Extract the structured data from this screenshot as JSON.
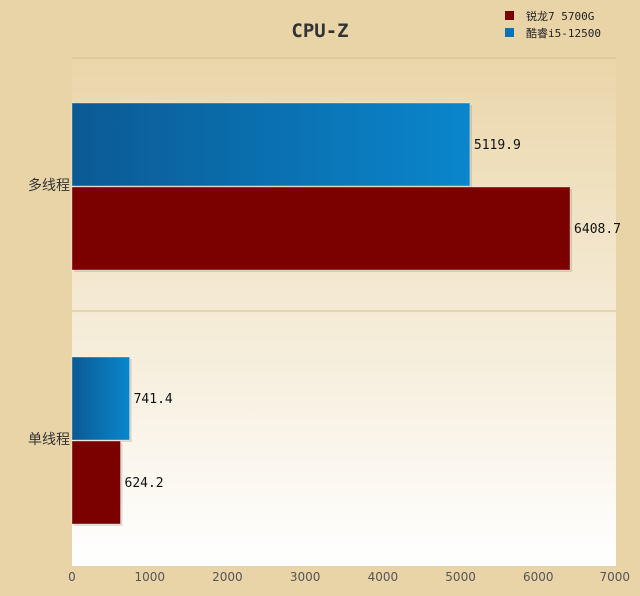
{
  "chart_data": {
    "type": "bar",
    "orientation": "horizontal",
    "title": "CPU-Z",
    "categories": [
      "多线程",
      "单线程"
    ],
    "series": [
      {
        "name": "锐龙7 5700G",
        "color": "#7b0000",
        "values": [
          6408.7,
          624.2
        ],
        "value_labels": [
          "6408.7",
          "624.2"
        ]
      },
      {
        "name": "酷睿i5-12500",
        "color": "#0a73b7",
        "values": [
          5119.9,
          741.4
        ],
        "value_labels": [
          "5119.9",
          "741.4"
        ]
      }
    ],
    "x_ticks": [
      0,
      1000,
      2000,
      3000,
      4000,
      5000,
      6000,
      7000
    ],
    "xlim": [
      0,
      7000
    ],
    "legend_position": "top-right",
    "grid": false
  }
}
